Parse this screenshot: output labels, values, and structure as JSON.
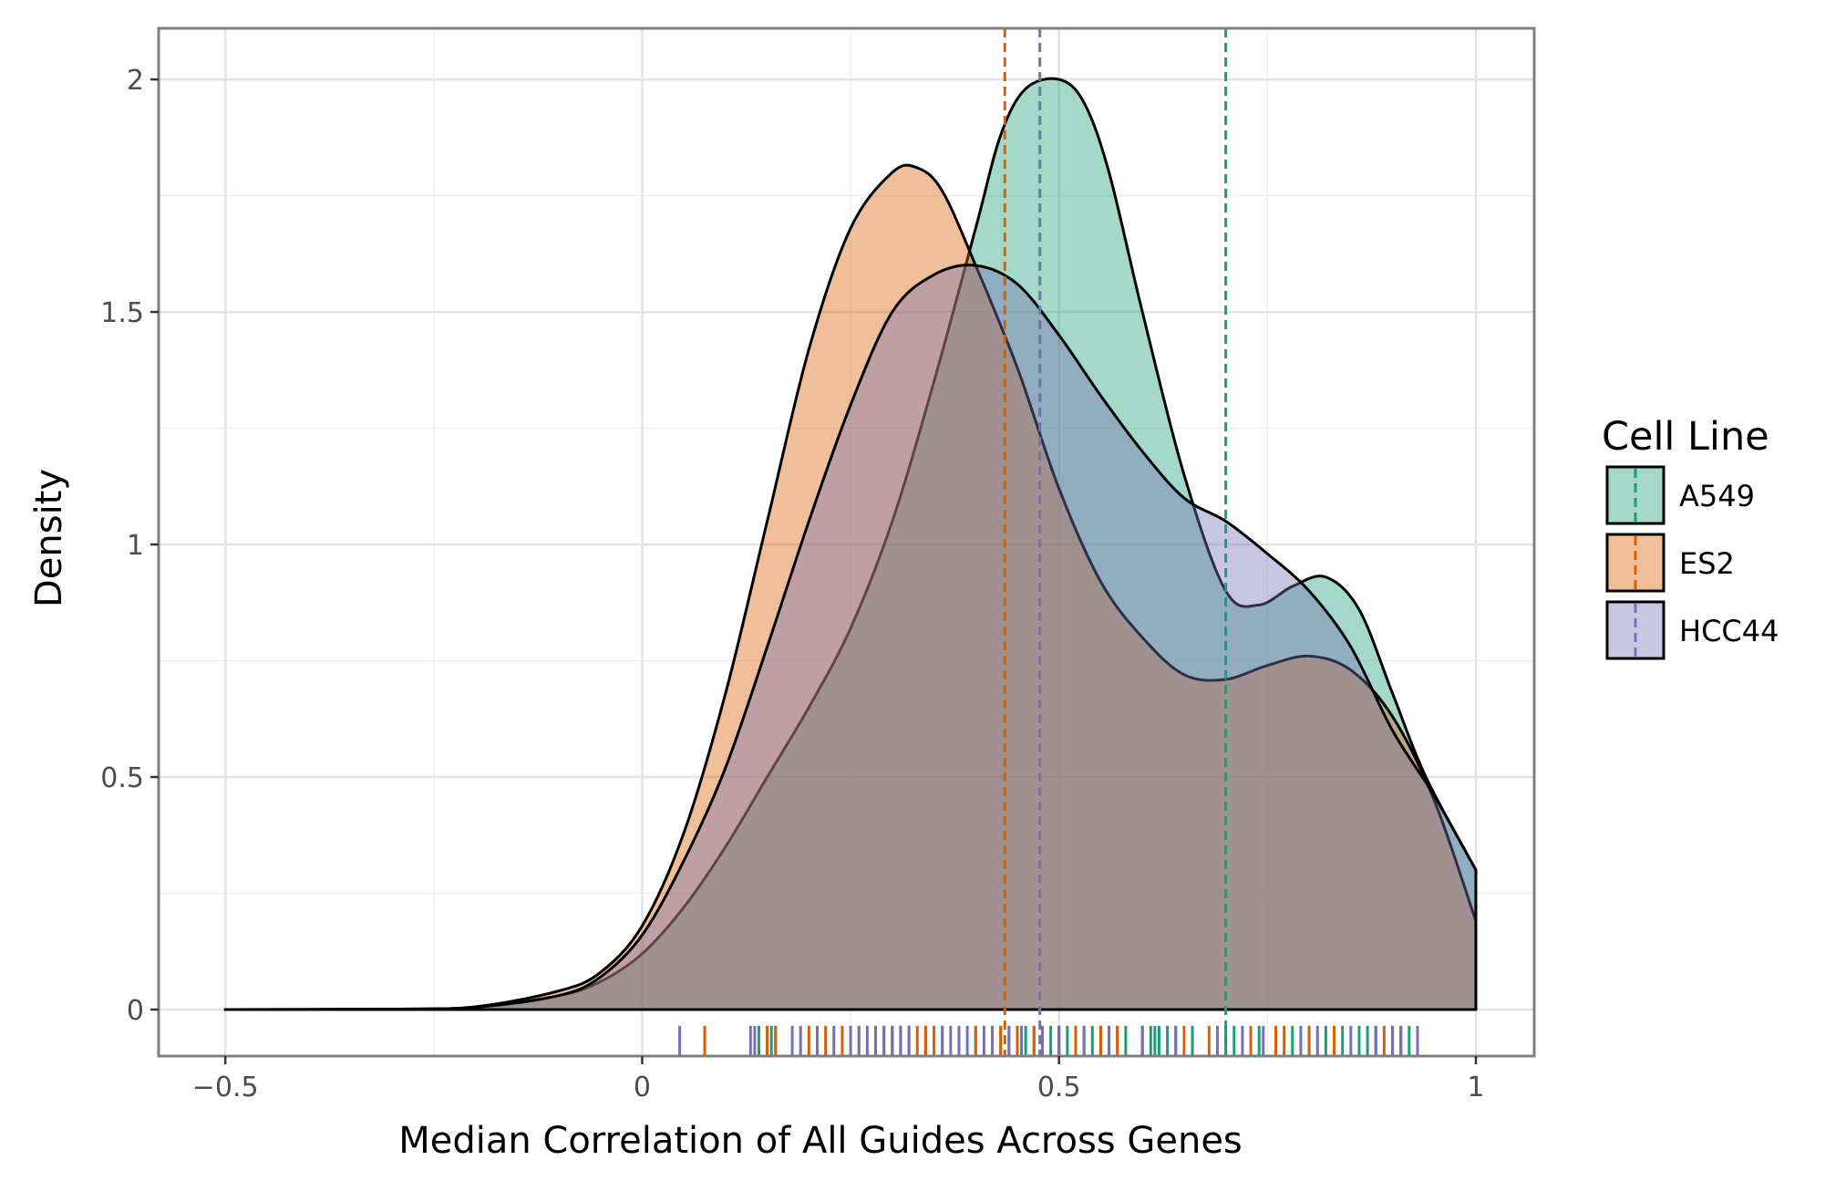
{
  "chart_data": {
    "type": "area",
    "chart_kind": "density plot with rug and mean lines",
    "xlabel": "Median Correlation of All Guides Across Genes",
    "ylabel": "Density",
    "xlim": [
      -0.58,
      1.07
    ],
    "ylim": [
      -0.1,
      2.11
    ],
    "x_ticks": [
      -0.5,
      0,
      0.5,
      1
    ],
    "x_tick_labels": [
      "−0.5",
      "0",
      "0.5",
      "1"
    ],
    "y_ticks": [
      0,
      0.5,
      1,
      1.5,
      2
    ],
    "y_tick_labels": [
      "0",
      "0.5",
      "1",
      "1.5",
      "2"
    ],
    "grid": true,
    "fill_opacity": 0.4,
    "legend": {
      "title": "Cell Line",
      "position": "right"
    },
    "series": [
      {
        "name": "A549",
        "color": "#1b9e77",
        "mean_line": 0.7,
        "points": [
          [
            -0.5,
            0
          ],
          [
            -0.3,
            0.001
          ],
          [
            -0.2,
            0.005
          ],
          [
            -0.1,
            0.03
          ],
          [
            -0.05,
            0.06
          ],
          [
            0,
            0.12
          ],
          [
            0.05,
            0.22
          ],
          [
            0.1,
            0.35
          ],
          [
            0.15,
            0.5
          ],
          [
            0.2,
            0.65
          ],
          [
            0.25,
            0.82
          ],
          [
            0.3,
            1.05
          ],
          [
            0.35,
            1.35
          ],
          [
            0.4,
            1.68
          ],
          [
            0.43,
            1.88
          ],
          [
            0.46,
            1.98
          ],
          [
            0.5,
            2.0
          ],
          [
            0.53,
            1.95
          ],
          [
            0.56,
            1.8
          ],
          [
            0.6,
            1.5
          ],
          [
            0.65,
            1.15
          ],
          [
            0.7,
            0.9
          ],
          [
            0.74,
            0.87
          ],
          [
            0.78,
            0.91
          ],
          [
            0.82,
            0.93
          ],
          [
            0.86,
            0.86
          ],
          [
            0.9,
            0.68
          ],
          [
            0.94,
            0.5
          ],
          [
            1.0,
            0.3
          ]
        ]
      },
      {
        "name": "ES2",
        "color": "#d95f02",
        "mean_line": 0.435,
        "points": [
          [
            -0.5,
            0
          ],
          [
            -0.3,
            0.001
          ],
          [
            -0.2,
            0.006
          ],
          [
            -0.1,
            0.04
          ],
          [
            -0.05,
            0.08
          ],
          [
            0,
            0.18
          ],
          [
            0.05,
            0.38
          ],
          [
            0.1,
            0.68
          ],
          [
            0.15,
            1.05
          ],
          [
            0.2,
            1.42
          ],
          [
            0.25,
            1.68
          ],
          [
            0.3,
            1.8
          ],
          [
            0.33,
            1.81
          ],
          [
            0.36,
            1.76
          ],
          [
            0.4,
            1.6
          ],
          [
            0.45,
            1.38
          ],
          [
            0.5,
            1.12
          ],
          [
            0.55,
            0.92
          ],
          [
            0.6,
            0.8
          ],
          [
            0.65,
            0.72
          ],
          [
            0.7,
            0.71
          ],
          [
            0.75,
            0.74
          ],
          [
            0.8,
            0.76
          ],
          [
            0.85,
            0.73
          ],
          [
            0.9,
            0.63
          ],
          [
            0.95,
            0.45
          ],
          [
            1.0,
            0.19
          ]
        ]
      },
      {
        "name": "HCC44",
        "color": "#7570b3",
        "mean_line": 0.477,
        "points": [
          [
            -0.5,
            0
          ],
          [
            -0.3,
            0.001
          ],
          [
            -0.2,
            0.005
          ],
          [
            -0.1,
            0.03
          ],
          [
            -0.05,
            0.07
          ],
          [
            0,
            0.16
          ],
          [
            0.05,
            0.32
          ],
          [
            0.1,
            0.52
          ],
          [
            0.15,
            0.78
          ],
          [
            0.2,
            1.05
          ],
          [
            0.25,
            1.3
          ],
          [
            0.3,
            1.5
          ],
          [
            0.35,
            1.58
          ],
          [
            0.4,
            1.6
          ],
          [
            0.45,
            1.56
          ],
          [
            0.5,
            1.45
          ],
          [
            0.55,
            1.32
          ],
          [
            0.6,
            1.2
          ],
          [
            0.65,
            1.1
          ],
          [
            0.7,
            1.05
          ],
          [
            0.75,
            0.98
          ],
          [
            0.8,
            0.9
          ],
          [
            0.85,
            0.78
          ],
          [
            0.9,
            0.6
          ],
          [
            0.95,
            0.46
          ],
          [
            1.0,
            0.3
          ]
        ]
      }
    ],
    "rug": {
      "A549": [
        0.14,
        0.15,
        0.155,
        0.16,
        0.3,
        0.31,
        0.32,
        0.34,
        0.36,
        0.4,
        0.43,
        0.45,
        0.46,
        0.47,
        0.48,
        0.49,
        0.5,
        0.51,
        0.52,
        0.53,
        0.54,
        0.55,
        0.56,
        0.57,
        0.58,
        0.6,
        0.61,
        0.615,
        0.62,
        0.63,
        0.64,
        0.66,
        0.7,
        0.71,
        0.74,
        0.78,
        0.8,
        0.82,
        0.83,
        0.84,
        0.86,
        0.87,
        0.88,
        0.9,
        0.91,
        0.92
      ],
      "ES2": [
        0.075,
        0.15,
        0.16,
        0.2,
        0.22,
        0.24,
        0.26,
        0.28,
        0.29,
        0.3,
        0.31,
        0.32,
        0.33,
        0.34,
        0.35,
        0.4,
        0.42,
        0.43,
        0.44,
        0.45,
        0.47,
        0.5,
        0.52,
        0.55,
        0.57,
        0.6,
        0.65,
        0.68,
        0.73,
        0.76,
        0.77,
        0.8,
        0.83,
        0.89,
        0.9,
        0.91
      ],
      "HCC44": [
        0.045,
        0.13,
        0.135,
        0.18,
        0.19,
        0.21,
        0.23,
        0.25,
        0.26,
        0.27,
        0.28,
        0.29,
        0.3,
        0.31,
        0.32,
        0.36,
        0.37,
        0.38,
        0.39,
        0.41,
        0.42,
        0.44,
        0.455,
        0.48,
        0.5,
        0.53,
        0.56,
        0.6,
        0.64,
        0.69,
        0.72,
        0.745,
        0.79,
        0.81,
        0.85,
        0.88,
        0.9,
        0.91,
        0.93
      ]
    }
  }
}
